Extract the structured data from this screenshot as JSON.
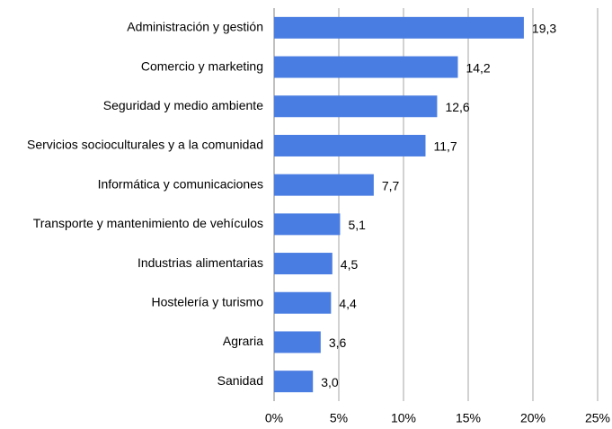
{
  "chart_data": {
    "type": "bar",
    "orientation": "horizontal",
    "categories": [
      "Administración y gestión",
      "Comercio y marketing",
      "Seguridad y medio ambiente",
      "Servicios socioculturales y a la comunidad",
      "Informática y comunicaciones",
      "Transporte y mantenimiento de vehículos",
      "Industrias alimentarias",
      "Hostelería y turismo",
      "Agraria",
      "Sanidad"
    ],
    "values": [
      19.3,
      14.2,
      12.6,
      11.7,
      7.7,
      5.1,
      4.5,
      4.4,
      3.6,
      3.0
    ],
    "value_labels": [
      "19,3",
      "14,2",
      "12,6",
      "11,7",
      "7,7",
      "5,1",
      "4,5",
      "4,4",
      "3,6",
      "3,0"
    ],
    "color": "#4a7de2",
    "xlim": [
      0,
      25
    ],
    "xticks": [
      {
        "value": 0,
        "label": "0%"
      },
      {
        "value": 5,
        "label": "5%"
      },
      {
        "value": 10,
        "label": "10%"
      },
      {
        "value": 15,
        "label": "15%"
      },
      {
        "value": 20,
        "label": "20%"
      },
      {
        "value": 25,
        "label": "25%"
      }
    ],
    "grid": true
  }
}
